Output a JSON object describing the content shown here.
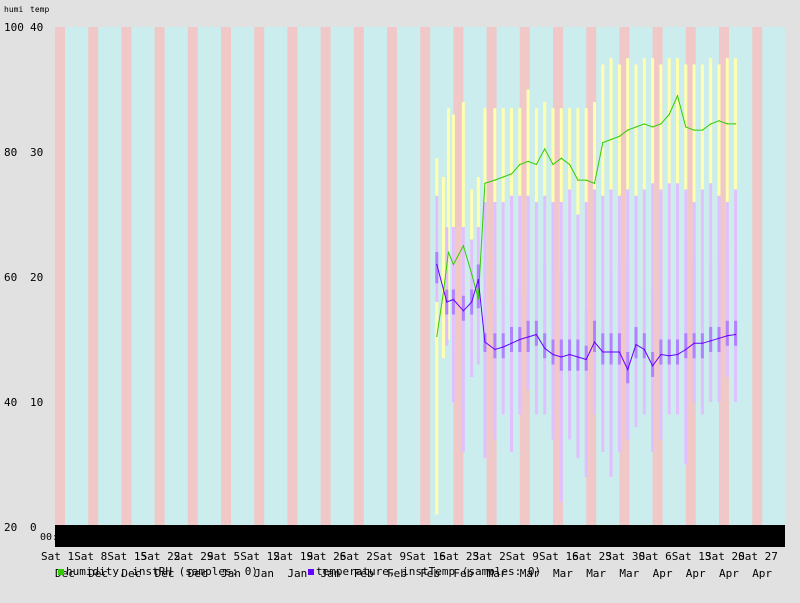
{
  "chart_data": {
    "type": "line",
    "axis_label_left": "humi",
    "axis_label_right": "temp",
    "y_left": {
      "min": 20,
      "max": 100,
      "ticks": [
        20,
        40,
        60,
        80,
        100
      ]
    },
    "y_right": {
      "min": 0,
      "max": 40,
      "ticks": [
        0,
        10,
        20,
        30,
        40
      ]
    },
    "x_labels": [
      {
        "top": "Sat",
        "mid": "1",
        "bottom": "Dec"
      },
      {
        "top": "Sat",
        "mid": "8",
        "bottom": "Dec"
      },
      {
        "top": "Sat",
        "mid": "15",
        "bottom": "Dec"
      },
      {
        "top": "Sat",
        "mid": "22",
        "bottom": "Dec"
      },
      {
        "top": "Sat",
        "mid": "29",
        "bottom": "Dec"
      },
      {
        "top": "Sat",
        "mid": "5",
        "bottom": "Jan"
      },
      {
        "top": "Sat",
        "mid": "12",
        "bottom": "Jan"
      },
      {
        "top": "Sat",
        "mid": "19",
        "bottom": "Jan"
      },
      {
        "top": "Sat",
        "mid": "26",
        "bottom": "Jan"
      },
      {
        "top": "Sat",
        "mid": "2",
        "bottom": "Feb"
      },
      {
        "top": "Sat",
        "mid": "9",
        "bottom": "Feb"
      },
      {
        "top": "Sat",
        "mid": "16",
        "bottom": "Feb"
      },
      {
        "top": "Sat",
        "mid": "23",
        "bottom": "Feb"
      },
      {
        "top": "Sat",
        "mid": "2",
        "bottom": "Mar"
      },
      {
        "top": "Sat",
        "mid": "9",
        "bottom": "Mar"
      },
      {
        "top": "Sat",
        "mid": "16",
        "bottom": "Mar"
      },
      {
        "top": "Sat",
        "mid": "23",
        "bottom": "Mar"
      },
      {
        "top": "Sat",
        "mid": "30",
        "bottom": "Mar"
      },
      {
        "top": "Sat",
        "mid": "6",
        "bottom": "Apr"
      },
      {
        "top": "Sat",
        "mid": "13",
        "bottom": "Apr"
      },
      {
        "top": "Sat",
        "mid": "20",
        "bottom": "Apr"
      },
      {
        "top": "Sat",
        "mid": "27",
        "bottom": "Apr"
      }
    ],
    "time_label": "00:",
    "legend": [
      {
        "text": "humidity, instRH (samples: 0)",
        "color": "#33cc00"
      },
      {
        "text": "temperature, instTemp (samples: 0)",
        "color": "#6600ff"
      }
    ],
    "legend_overlay_labels": [
      "Decembe",
      "Dec",
      "Jan",
      "Feb",
      "Feb",
      "Feb",
      "Mar"
    ],
    "colors": {
      "plot_bg": "#cceded",
      "weekend_band": "#f0c8c8",
      "humidity_line": "#33cc00",
      "humidity_band": "#ffffb0",
      "temperature_line": "#6600ff",
      "temperature_band": "#e0c0ff",
      "temperature_core": "#b380ff",
      "bottom_bar": "#000000"
    },
    "series": [
      {
        "name": "humidity",
        "axis": "left",
        "x": [
          11.5,
          11.7,
          11.85,
          12.0,
          12.3,
          12.55,
          12.75,
          12.95,
          13.25,
          13.5,
          13.75,
          14.0,
          14.25,
          14.5,
          14.75,
          15.0,
          15.25,
          15.5,
          15.75,
          16.0,
          16.25,
          16.5,
          16.75,
          17.0,
          17.25,
          17.5,
          17.75,
          18.0,
          18.25,
          18.5,
          18.75,
          19.0,
          19.25,
          19.5,
          19.75,
          20.0,
          20.25,
          20.5
        ],
        "y": [
          50.5,
          57.5,
          64.0,
          62.0,
          65.0,
          60.5,
          56.5,
          75.0,
          75.5,
          76.0,
          76.5,
          78.0,
          78.5,
          78.0,
          80.5,
          78.0,
          79.0,
          78.0,
          75.5,
          75.5,
          75.0,
          81.5,
          82.0,
          82.5,
          83.5,
          84.0,
          84.5,
          84.0,
          84.5,
          86.0,
          89.0,
          84.0,
          83.5,
          83.5,
          84.5,
          85.0,
          84.5,
          84.5
        ],
        "band_low": [
          22,
          47,
          50,
          48,
          55,
          48,
          48,
          55,
          55,
          56,
          57,
          58,
          57,
          60,
          62,
          57,
          60,
          54,
          53,
          55,
          54,
          62,
          60,
          62,
          63,
          60,
          58,
          58,
          58,
          60,
          65,
          66,
          63,
          60,
          63,
          63,
          65,
          62
        ],
        "band_high": [
          79,
          76,
          87,
          86,
          88,
          74,
          76,
          87,
          87,
          87,
          87,
          87,
          90,
          87,
          88,
          87,
          87,
          87,
          87,
          87,
          88,
          94,
          95,
          94,
          95,
          94,
          95,
          95,
          94,
          95,
          95,
          94,
          94,
          94,
          95,
          94,
          95,
          95
        ]
      },
      {
        "name": "temperature",
        "axis": "right",
        "x": [
          11.5,
          11.8,
          12.0,
          12.3,
          12.55,
          12.75,
          12.95,
          13.25,
          13.5,
          13.75,
          14.0,
          14.25,
          14.5,
          14.75,
          15.0,
          15.25,
          15.5,
          15.75,
          16.0,
          16.25,
          16.5,
          16.75,
          17.0,
          17.25,
          17.5,
          17.75,
          18.0,
          18.25,
          18.5,
          18.75,
          19.0,
          19.25,
          19.5,
          19.75,
          20.0,
          20.25,
          20.5
        ],
        "y": [
          21.0,
          18.0,
          18.2,
          17.3,
          18.0,
          19.8,
          14.8,
          14.2,
          14.4,
          14.7,
          15.0,
          15.2,
          15.4,
          14.3,
          13.8,
          13.6,
          13.8,
          13.6,
          13.4,
          14.8,
          14.0,
          14.0,
          14.0,
          12.6,
          14.6,
          14.2,
          12.9,
          13.8,
          13.7,
          13.8,
          14.2,
          14.7,
          14.7,
          14.9,
          15.1,
          15.3,
          15.4
        ],
        "band_low": [
          18.0,
          14.5,
          10.0,
          6.0,
          12.0,
          13.0,
          5.5,
          7.0,
          9.0,
          6.0,
          9.0,
          11.0,
          9.0,
          9.0,
          7.0,
          2.0,
          7.0,
          5.5,
          4.0,
          9.0,
          6.0,
          4.0,
          6.0,
          7.0,
          8.0,
          9.0,
          6.0,
          7.0,
          9.0,
          9.0,
          5.0,
          10.0,
          9.0,
          10.0,
          10.0,
          12.0,
          10.0
        ],
        "band_high": [
          26.5,
          24.0,
          24.0,
          24.0,
          23.0,
          24.0,
          26.0,
          26.0,
          26.0,
          26.5,
          26.5,
          26.5,
          26.0,
          26.5,
          26.0,
          26.0,
          27.0,
          25.0,
          26.0,
          27.0,
          26.5,
          27.0,
          26.5,
          27.0,
          26.5,
          27.0,
          27.5,
          27.0,
          27.5,
          27.5,
          27.0,
          26.0,
          27.0,
          27.5,
          26.5,
          26.0,
          27.0
        ],
        "core_low": [
          19.5,
          17.0,
          17.0,
          16.5,
          17.0,
          17.5,
          14.0,
          13.5,
          13.5,
          14.0,
          14.0,
          14.0,
          14.5,
          13.5,
          13.0,
          12.5,
          12.5,
          12.5,
          12.5,
          14.0,
          13.0,
          13.0,
          13.0,
          11.5,
          13.5,
          13.5,
          12.0,
          13.0,
          13.0,
          13.0,
          13.5,
          13.5,
          13.5,
          14.0,
          14.0,
          14.5,
          14.5
        ],
        "core_high": [
          22.0,
          19.0,
          19.0,
          18.5,
          19.0,
          21.0,
          15.5,
          15.5,
          15.5,
          16.0,
          16.0,
          16.5,
          16.5,
          15.5,
          15.0,
          15.0,
          15.0,
          15.0,
          14.5,
          16.5,
          15.5,
          15.5,
          15.5,
          14.0,
          16.0,
          15.5,
          14.0,
          15.0,
          15.0,
          15.0,
          15.5,
          15.5,
          15.5,
          16.0,
          16.0,
          16.5,
          16.5
        ]
      }
    ]
  }
}
